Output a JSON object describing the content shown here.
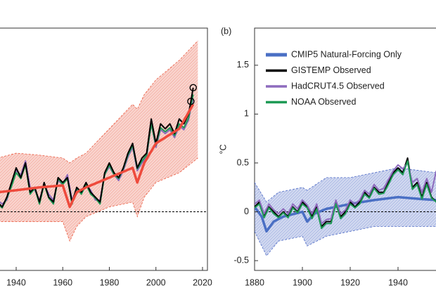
{
  "chart_data": [
    {
      "type": "line",
      "xlim": [
        1880,
        2022
      ],
      "ylim": [
        -0.6,
        1.88
      ],
      "xticks": [
        1940,
        1960,
        1980,
        2000,
        2020
      ],
      "hline": 0,
      "band": {
        "color": "#e9593f",
        "x": [
          1932,
          1940,
          1950,
          1960,
          1963,
          1966,
          1970,
          1980,
          1990,
          1992,
          1995,
          2000,
          2010,
          2018
        ],
        "upper": [
          0.55,
          0.6,
          0.58,
          0.55,
          0.5,
          0.55,
          0.6,
          0.85,
          1.1,
          1.05,
          1.2,
          1.35,
          1.55,
          1.75
        ],
        "lower": [
          -0.1,
          -0.1,
          -0.1,
          -0.1,
          -0.3,
          -0.15,
          -0.05,
          0.05,
          0.1,
          -0.05,
          0.15,
          0.3,
          0.4,
          0.55
        ]
      },
      "series": [
        {
          "color": "#8e6bbd",
          "width": 2,
          "x": [
            1932,
            1934,
            1936,
            1938,
            1940,
            1942,
            1944,
            1946,
            1948,
            1950,
            1952,
            1954,
            1956,
            1958,
            1960,
            1962,
            1964,
            1966,
            1968,
            1970,
            1972,
            1974,
            1976,
            1978,
            1980,
            1982,
            1984,
            1986,
            1988,
            1990,
            1992,
            1994,
            1996,
            1998,
            2000,
            2002,
            2004,
            2006,
            2008,
            2010,
            2012,
            2014,
            2015,
            2016
          ],
          "values": [
            0.12,
            0.08,
            0.12,
            0.28,
            0.42,
            0.38,
            0.52,
            0.25,
            0.22,
            0.12,
            0.28,
            0.18,
            0.12,
            0.32,
            0.28,
            0.38,
            0.12,
            0.22,
            0.22,
            0.28,
            0.22,
            0.12,
            0.12,
            0.38,
            0.46,
            0.38,
            0.32,
            0.42,
            0.56,
            0.66,
            0.42,
            0.5,
            0.56,
            0.9,
            0.66,
            0.84,
            0.8,
            0.84,
            0.76,
            0.88,
            0.84,
            0.94,
            1.06,
            1.16
          ]
        },
        {
          "color": "#1e9a55",
          "width": 2,
          "x": [
            1932,
            1934,
            1936,
            1938,
            1940,
            1942,
            1944,
            1946,
            1948,
            1950,
            1952,
            1954,
            1956,
            1958,
            1960,
            1962,
            1964,
            1966,
            1968,
            1970,
            1972,
            1974,
            1976,
            1978,
            1980,
            1982,
            1984,
            1986,
            1988,
            1990,
            1992,
            1994,
            1996,
            1998,
            2000,
            2002,
            2004,
            2006,
            2008,
            2010,
            2012,
            2014,
            2015,
            2016
          ],
          "values": [
            0.08,
            0.04,
            0.14,
            0.26,
            0.4,
            0.34,
            0.48,
            0.18,
            0.24,
            0.08,
            0.28,
            0.14,
            0.08,
            0.34,
            0.28,
            0.34,
            0.08,
            0.24,
            0.18,
            0.28,
            0.18,
            0.14,
            0.08,
            0.38,
            0.48,
            0.38,
            0.34,
            0.44,
            0.58,
            0.68,
            0.44,
            0.52,
            0.58,
            0.9,
            0.68,
            0.86,
            0.82,
            0.86,
            0.78,
            0.9,
            0.86,
            0.96,
            1.08,
            1.2
          ]
        },
        {
          "color": "#000000",
          "width": 2,
          "x": [
            1932,
            1934,
            1936,
            1938,
            1940,
            1942,
            1944,
            1946,
            1948,
            1950,
            1952,
            1954,
            1956,
            1958,
            1960,
            1962,
            1964,
            1966,
            1968,
            1970,
            1972,
            1974,
            1976,
            1978,
            1980,
            1982,
            1984,
            1986,
            1988,
            1990,
            1992,
            1994,
            1996,
            1998,
            2000,
            2002,
            2004,
            2006,
            2008,
            2010,
            2012,
            2014,
            2015,
            2016
          ],
          "values": [
            0.1,
            0.05,
            0.15,
            0.3,
            0.45,
            0.35,
            0.5,
            0.2,
            0.25,
            0.1,
            0.3,
            0.15,
            0.1,
            0.35,
            0.3,
            0.35,
            0.1,
            0.25,
            0.2,
            0.3,
            0.2,
            0.15,
            0.1,
            0.4,
            0.5,
            0.4,
            0.35,
            0.45,
            0.6,
            0.7,
            0.45,
            0.55,
            0.6,
            0.95,
            0.7,
            0.9,
            0.85,
            0.9,
            0.8,
            0.95,
            0.9,
            1.0,
            1.13,
            1.27
          ]
        },
        {
          "color": "#ee4a3c",
          "width": 3.5,
          "x": [
            1932,
            1940,
            1950,
            1960,
            1963,
            1966,
            1970,
            1980,
            1990,
            1992,
            1995,
            2000,
            2010,
            2016
          ],
          "values": [
            0.2,
            0.22,
            0.25,
            0.27,
            0.05,
            0.2,
            0.25,
            0.35,
            0.45,
            0.3,
            0.5,
            0.7,
            0.85,
            1.1
          ]
        },
        {
          "color": "#000000",
          "marker": "circle",
          "x": [
            2015,
            2016
          ],
          "values": [
            1.13,
            1.27
          ]
        }
      ]
    },
    {
      "type": "line",
      "label": "(b)",
      "ylabel": "°C",
      "xlim": [
        1880,
        2022
      ],
      "ylim": [
        -0.6,
        1.88
      ],
      "xticks": [
        1880,
        1900,
        1920,
        1940
      ],
      "yticks": [
        -0.5,
        0,
        0.5,
        1,
        1.5
      ],
      "hline": 0,
      "band": {
        "color": "#4a67c4",
        "x": [
          1880,
          1885,
          1890,
          1900,
          1902,
          1910,
          1920,
          1930,
          1940,
          1956
        ],
        "upper": [
          0.3,
          0.1,
          0.2,
          0.25,
          0.22,
          0.35,
          0.35,
          0.4,
          0.45,
          0.4
        ],
        "lower": [
          -0.2,
          -0.45,
          -0.3,
          -0.25,
          -0.35,
          -0.25,
          -0.2,
          -0.15,
          -0.15,
          -0.15
        ]
      },
      "series": [
        {
          "name": "CMIP5 Natural-Forcing Only",
          "color": "#4a6fc4",
          "width": 3.5,
          "x": [
            1880,
            1883,
            1885,
            1888,
            1892,
            1900,
            1902,
            1905,
            1910,
            1920,
            1930,
            1940,
            1950,
            1956
          ],
          "values": [
            0.05,
            -0.05,
            -0.2,
            -0.1,
            -0.05,
            0.0,
            -0.1,
            -0.02,
            0.03,
            0.08,
            0.12,
            0.15,
            0.13,
            0.12
          ]
        },
        {
          "name": "GISTEMP Observed",
          "color": "#000000",
          "width": 2,
          "x": [
            1880,
            1882,
            1884,
            1886,
            1888,
            1890,
            1892,
            1894,
            1896,
            1898,
            1900,
            1902,
            1904,
            1906,
            1908,
            1910,
            1912,
            1914,
            1916,
            1918,
            1920,
            1922,
            1924,
            1926,
            1928,
            1930,
            1932,
            1934,
            1936,
            1938,
            1940,
            1942,
            1944,
            1946,
            1948,
            1950,
            1952,
            1954,
            1956
          ],
          "values": [
            0.05,
            0.1,
            -0.05,
            0.05,
            0.0,
            -0.05,
            0.0,
            -0.05,
            0.05,
            0.0,
            0.1,
            0.05,
            -0.05,
            0.05,
            -0.15,
            -0.1,
            -0.1,
            0.1,
            -0.05,
            0.0,
            0.1,
            0.05,
            0.1,
            0.2,
            0.15,
            0.25,
            0.2,
            0.2,
            0.3,
            0.4,
            0.45,
            0.4,
            0.55,
            0.25,
            0.3,
            0.15,
            0.3,
            0.15,
            0.1
          ]
        },
        {
          "name": "HadCRUT4.5 Observed",
          "color": "#8e6bbd",
          "width": 2,
          "x": [
            1880,
            1882,
            1884,
            1886,
            1888,
            1890,
            1892,
            1894,
            1896,
            1898,
            1900,
            1902,
            1904,
            1906,
            1908,
            1910,
            1912,
            1914,
            1916,
            1918,
            1920,
            1922,
            1924,
            1926,
            1928,
            1930,
            1932,
            1934,
            1936,
            1938,
            1940,
            1942,
            1944,
            1946,
            1948,
            1950,
            1952,
            1954,
            1956
          ],
          "values": [
            0.08,
            0.12,
            -0.02,
            0.08,
            0.02,
            -0.02,
            0.03,
            -0.02,
            0.08,
            0.03,
            0.12,
            0.07,
            -0.02,
            0.08,
            -0.12,
            -0.08,
            -0.07,
            0.12,
            -0.02,
            0.02,
            0.12,
            0.08,
            0.12,
            0.22,
            0.18,
            0.28,
            0.22,
            0.24,
            0.33,
            0.42,
            0.48,
            0.44,
            0.5,
            0.3,
            0.34,
            0.2,
            0.34,
            0.2,
            0.42
          ]
        },
        {
          "name": "NOAA Observed",
          "color": "#1e9a55",
          "width": 2,
          "x": [
            1880,
            1882,
            1884,
            1886,
            1888,
            1890,
            1892,
            1894,
            1896,
            1898,
            1900,
            1902,
            1904,
            1906,
            1908,
            1910,
            1912,
            1914,
            1916,
            1918,
            1920,
            1922,
            1924,
            1926,
            1928,
            1930,
            1932,
            1934,
            1936,
            1938,
            1940,
            1942,
            1944,
            1946,
            1948,
            1950,
            1952,
            1954,
            1956
          ],
          "values": [
            0.04,
            0.08,
            -0.06,
            0.04,
            -0.02,
            -0.06,
            -0.01,
            -0.06,
            0.04,
            -0.01,
            0.08,
            0.04,
            -0.07,
            0.03,
            -0.17,
            -0.12,
            -0.12,
            0.08,
            -0.07,
            -0.02,
            0.08,
            0.04,
            0.08,
            0.18,
            0.14,
            0.24,
            0.18,
            0.19,
            0.28,
            0.38,
            0.43,
            0.38,
            0.52,
            0.23,
            0.28,
            0.13,
            0.28,
            0.14,
            0.1
          ]
        }
      ]
    }
  ]
}
